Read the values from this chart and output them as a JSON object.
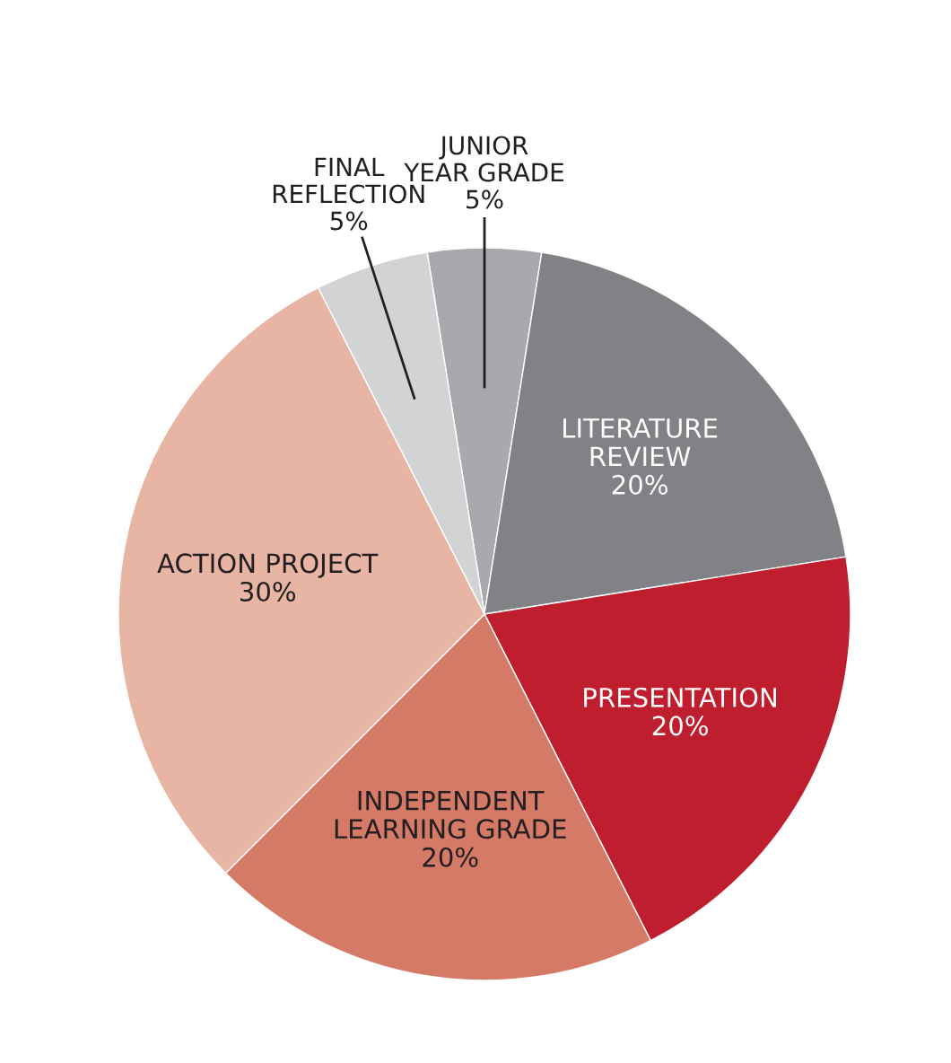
{
  "chart_data": {
    "type": "pie",
    "categories": [
      "JUNIOR\nYEAR GRADE",
      "LITERATURE\nREVIEW",
      "PRESENTATION",
      "INDEPENDENT\nLEARNING GRADE",
      "ACTION PROJECT",
      "FINAL\nREFLECTION"
    ],
    "values": [
      5,
      20,
      20,
      20,
      30,
      5
    ],
    "colors": [
      "#a7a9ac",
      "#808285",
      "#be1e2d",
      "#d57a67",
      "#e8b4a4",
      "#d1d3d4"
    ],
    "value_labels": [
      "5%",
      "20%",
      "20%",
      "20%",
      "30%",
      "5%"
    ],
    "legend": false
  }
}
